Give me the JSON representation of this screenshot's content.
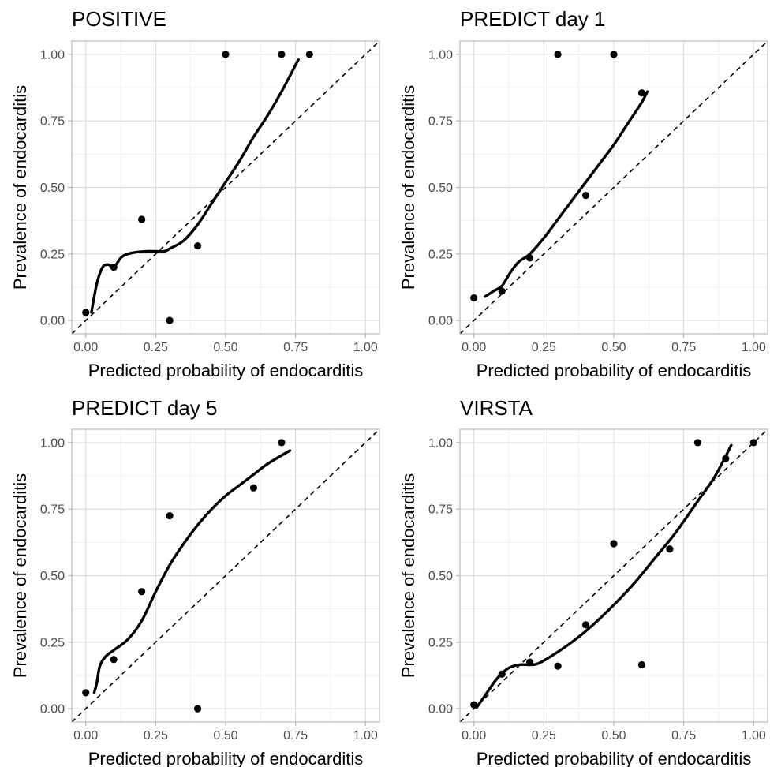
{
  "figure": {
    "xlabel": "Predicted probability of endocarditis",
    "ylabel": "Prevalence of endocarditis",
    "colors": {
      "background": "#ffffff",
      "grid_major": "#dcdcdc",
      "grid_minor": "#ededed",
      "panel_border": "#b3b3b3",
      "ink": "#000000",
      "tick_text": "#4d4d4d"
    }
  },
  "chart_data": [
    {
      "type": "scatter",
      "title": "POSITIVE",
      "xlabel": "Predicted probability of endocarditis",
      "ylabel": "Prevalence of endocarditis",
      "xlim": [
        0,
        1
      ],
      "ylim": [
        0,
        1
      ],
      "xticks": [
        "0.00",
        "0.25",
        "0.50",
        "0.75",
        "1.00"
      ],
      "yticks": [
        "0.00",
        "0.25",
        "0.50",
        "0.75",
        "1.00"
      ],
      "grid": true,
      "reference_line": "dashed diagonal y = x",
      "points": [
        {
          "x": 0.0,
          "y": 0.03
        },
        {
          "x": 0.1,
          "y": 0.2
        },
        {
          "x": 0.2,
          "y": 0.38
        },
        {
          "x": 0.3,
          "y": 0.0
        },
        {
          "x": 0.4,
          "y": 0.28
        },
        {
          "x": 0.5,
          "y": 1.0
        },
        {
          "x": 0.7,
          "y": 1.0
        },
        {
          "x": 0.8,
          "y": 1.0
        }
      ],
      "smooth_curve": [
        {
          "x": 0.02,
          "y": 0.03
        },
        {
          "x": 0.04,
          "y": 0.14
        },
        {
          "x": 0.06,
          "y": 0.2
        },
        {
          "x": 0.08,
          "y": 0.21
        },
        {
          "x": 0.1,
          "y": 0.2
        },
        {
          "x": 0.13,
          "y": 0.24
        },
        {
          "x": 0.17,
          "y": 0.255
        },
        {
          "x": 0.22,
          "y": 0.26
        },
        {
          "x": 0.28,
          "y": 0.26
        },
        {
          "x": 0.3,
          "y": 0.27
        },
        {
          "x": 0.35,
          "y": 0.3
        },
        {
          "x": 0.4,
          "y": 0.36
        },
        {
          "x": 0.45,
          "y": 0.44
        },
        {
          "x": 0.5,
          "y": 0.52
        },
        {
          "x": 0.55,
          "y": 0.6
        },
        {
          "x": 0.6,
          "y": 0.69
        },
        {
          "x": 0.65,
          "y": 0.77
        },
        {
          "x": 0.7,
          "y": 0.86
        },
        {
          "x": 0.76,
          "y": 0.98
        }
      ]
    },
    {
      "type": "scatter",
      "title": "PREDICT day 1",
      "xlabel": "Predicted probability of endocarditis",
      "ylabel": "Prevalence of endocarditis",
      "xlim": [
        0,
        1
      ],
      "ylim": [
        0,
        1
      ],
      "xticks": [
        "0.00",
        "0.25",
        "0.50",
        "0.75",
        "1.00"
      ],
      "yticks": [
        "0.00",
        "0.25",
        "0.50",
        "0.75",
        "1.00"
      ],
      "grid": true,
      "reference_line": "dashed diagonal y = x",
      "points": [
        {
          "x": 0.0,
          "y": 0.085
        },
        {
          "x": 0.1,
          "y": 0.11
        },
        {
          "x": 0.2,
          "y": 0.235
        },
        {
          "x": 0.3,
          "y": 1.0
        },
        {
          "x": 0.4,
          "y": 0.47
        },
        {
          "x": 0.5,
          "y": 1.0
        },
        {
          "x": 0.6,
          "y": 0.855
        }
      ],
      "smooth_curve": [
        {
          "x": 0.04,
          "y": 0.09
        },
        {
          "x": 0.07,
          "y": 0.11
        },
        {
          "x": 0.1,
          "y": 0.13
        },
        {
          "x": 0.13,
          "y": 0.18
        },
        {
          "x": 0.16,
          "y": 0.22
        },
        {
          "x": 0.2,
          "y": 0.25
        },
        {
          "x": 0.25,
          "y": 0.31
        },
        {
          "x": 0.3,
          "y": 0.38
        },
        {
          "x": 0.35,
          "y": 0.45
        },
        {
          "x": 0.4,
          "y": 0.52
        },
        {
          "x": 0.45,
          "y": 0.59
        },
        {
          "x": 0.5,
          "y": 0.66
        },
        {
          "x": 0.55,
          "y": 0.74
        },
        {
          "x": 0.6,
          "y": 0.82
        },
        {
          "x": 0.62,
          "y": 0.86
        }
      ]
    },
    {
      "type": "scatter",
      "title": "PREDICT day 5",
      "xlabel": "Predicted probability of endocarditis",
      "ylabel": "Prevalence of endocarditis",
      "xlim": [
        0,
        1
      ],
      "ylim": [
        0,
        1
      ],
      "xticks": [
        "0.00",
        "0.25",
        "0.50",
        "0.75",
        "1.00"
      ],
      "yticks": [
        "0.00",
        "0.25",
        "0.50",
        "0.75",
        "1.00"
      ],
      "grid": true,
      "reference_line": "dashed diagonal y = x",
      "points": [
        {
          "x": 0.0,
          "y": 0.06
        },
        {
          "x": 0.1,
          "y": 0.185
        },
        {
          "x": 0.2,
          "y": 0.44
        },
        {
          "x": 0.3,
          "y": 0.725
        },
        {
          "x": 0.4,
          "y": 0.0
        },
        {
          "x": 0.6,
          "y": 0.83
        },
        {
          "x": 0.7,
          "y": 1.0
        }
      ],
      "smooth_curve": [
        {
          "x": 0.03,
          "y": 0.06
        },
        {
          "x": 0.04,
          "y": 0.1
        },
        {
          "x": 0.05,
          "y": 0.16
        },
        {
          "x": 0.07,
          "y": 0.195
        },
        {
          "x": 0.1,
          "y": 0.22
        },
        {
          "x": 0.15,
          "y": 0.26
        },
        {
          "x": 0.2,
          "y": 0.33
        },
        {
          "x": 0.25,
          "y": 0.44
        },
        {
          "x": 0.3,
          "y": 0.54
        },
        {
          "x": 0.35,
          "y": 0.62
        },
        {
          "x": 0.4,
          "y": 0.69
        },
        {
          "x": 0.45,
          "y": 0.75
        },
        {
          "x": 0.5,
          "y": 0.8
        },
        {
          "x": 0.55,
          "y": 0.84
        },
        {
          "x": 0.6,
          "y": 0.88
        },
        {
          "x": 0.65,
          "y": 0.92
        },
        {
          "x": 0.73,
          "y": 0.97
        }
      ]
    },
    {
      "type": "scatter",
      "title": "VIRSTA",
      "xlabel": "Predicted probability of endocarditis",
      "ylabel": "Prevalence of endocarditis",
      "xlim": [
        0,
        1
      ],
      "ylim": [
        0,
        1
      ],
      "xticks": [
        "0.00",
        "0.25",
        "0.50",
        "0.75",
        "1.00"
      ],
      "yticks": [
        "0.00",
        "0.25",
        "0.50",
        "0.75",
        "1.00"
      ],
      "grid": true,
      "reference_line": "dashed diagonal y = x",
      "points": [
        {
          "x": 0.0,
          "y": 0.015
        },
        {
          "x": 0.1,
          "y": 0.13
        },
        {
          "x": 0.2,
          "y": 0.175
        },
        {
          "x": 0.3,
          "y": 0.16
        },
        {
          "x": 0.4,
          "y": 0.315
        },
        {
          "x": 0.5,
          "y": 0.62
        },
        {
          "x": 0.6,
          "y": 0.165
        },
        {
          "x": 0.7,
          "y": 0.6
        },
        {
          "x": 0.8,
          "y": 1.0
        },
        {
          "x": 0.9,
          "y": 0.94
        },
        {
          "x": 1.0,
          "y": 1.0
        }
      ],
      "smooth_curve": [
        {
          "x": 0.01,
          "y": 0.005
        },
        {
          "x": 0.04,
          "y": 0.05
        },
        {
          "x": 0.08,
          "y": 0.11
        },
        {
          "x": 0.12,
          "y": 0.15
        },
        {
          "x": 0.16,
          "y": 0.165
        },
        {
          "x": 0.2,
          "y": 0.165
        },
        {
          "x": 0.23,
          "y": 0.17
        },
        {
          "x": 0.28,
          "y": 0.2
        },
        {
          "x": 0.35,
          "y": 0.25
        },
        {
          "x": 0.42,
          "y": 0.31
        },
        {
          "x": 0.5,
          "y": 0.39
        },
        {
          "x": 0.58,
          "y": 0.48
        },
        {
          "x": 0.65,
          "y": 0.57
        },
        {
          "x": 0.72,
          "y": 0.66
        },
        {
          "x": 0.8,
          "y": 0.78
        },
        {
          "x": 0.86,
          "y": 0.87
        },
        {
          "x": 0.92,
          "y": 0.99
        }
      ]
    }
  ]
}
